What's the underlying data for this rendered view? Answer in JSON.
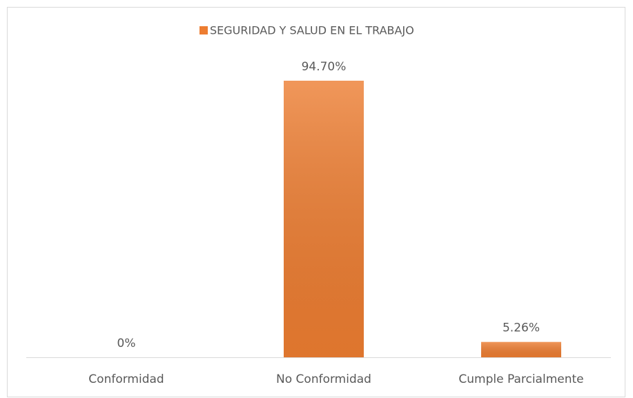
{
  "chart_data": {
    "type": "bar",
    "legend": "SEGURIDAD Y SALUD EN EL TRABAJO",
    "categories": [
      "Conformidad",
      "No Conformidad",
      "Cumple Parcialmente"
    ],
    "values": [
      0,
      94.7,
      5.26
    ],
    "value_labels": [
      "0%",
      "94.70%",
      "5.26%"
    ],
    "color": "#ed7d31",
    "legend_position": "top"
  }
}
